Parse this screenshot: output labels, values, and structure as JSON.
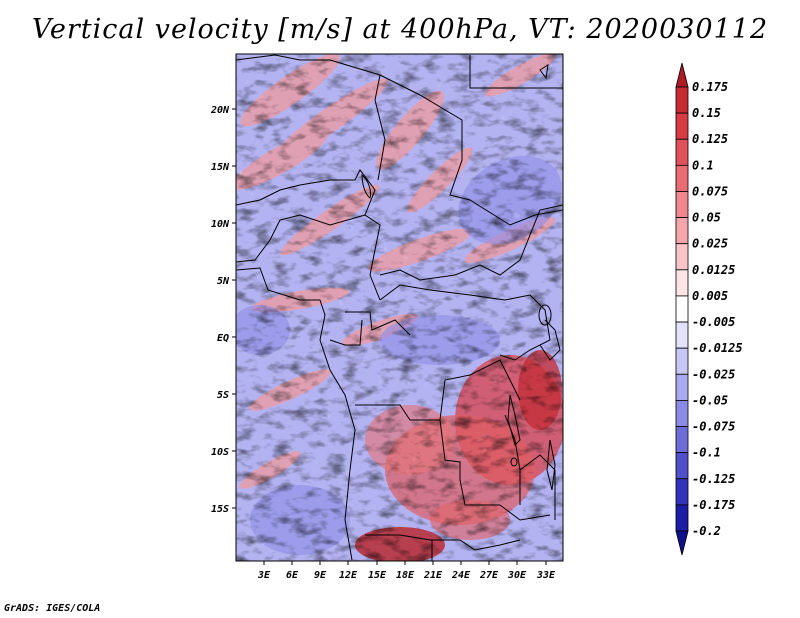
{
  "title": "Vertical velocity [m/s] at 400hPa, VT: 2020030112",
  "credit": "GrADS: IGES/COLA",
  "map": {
    "lat_labels": [
      "20N",
      "15N",
      "10N",
      "5N",
      "EQ",
      "5S",
      "10S",
      "15S"
    ],
    "lon_labels": [
      "3E",
      "6E",
      "9E",
      "12E",
      "15E",
      "18E",
      "21E",
      "24E",
      "27E",
      "30E",
      "33E"
    ]
  },
  "colorbar": {
    "labels": [
      "0.175",
      "0.15",
      "0.125",
      "0.1",
      "0.075",
      "0.05",
      "0.025",
      "0.0125",
      "0.005",
      "-0.005",
      "-0.0125",
      "-0.025",
      "-0.05",
      "-0.075",
      "-0.1",
      "-0.125",
      "-0.175",
      "-0.2"
    ],
    "colors": [
      "#b01c26",
      "#c62a33",
      "#d73b43",
      "#e0525a",
      "#e86c72",
      "#f0888d",
      "#f5a6aa",
      "#f9c4c7",
      "#fde4e5",
      "#ffffff",
      "#e2e2fb",
      "#c6c6f7",
      "#a9a9f0",
      "#8b8be6",
      "#6d6dda",
      "#5050cc",
      "#3232bb",
      "#1d1da6",
      "#10108a"
    ]
  }
}
